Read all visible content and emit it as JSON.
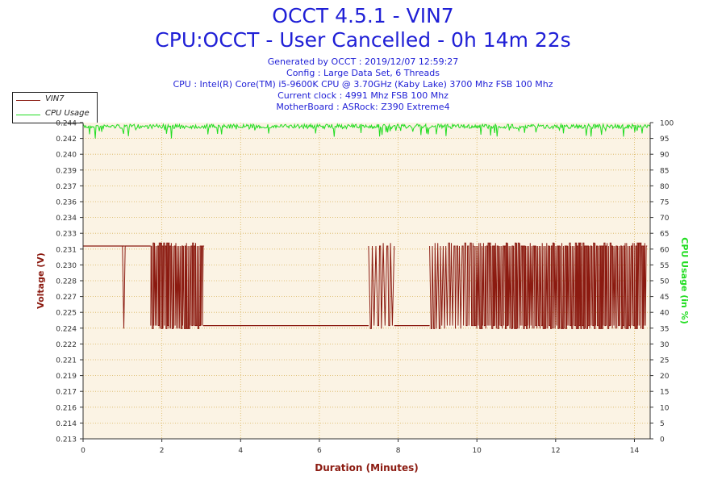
{
  "title": "OCCT 4.5.1 - VIN7",
  "subtitle": "CPU:OCCT - User Cancelled - 0h 14m 22s",
  "meta": [
    "Generated by OCCT : 2019/12/07 12:59:27",
    "Config : Large Data Set, 6 Threads",
    "CPU : Intel(R) Core(TM) i5-9600K CPU @ 3.70GHz (Kaby Lake) 3700 Mhz FSB 100 Mhz",
    "Current clock : 4991 Mhz FSB 100 Mhz",
    "MotherBoard : ASRock: Z390 Extreme4"
  ],
  "colors": {
    "title": "#1f1fd6",
    "voltage": "#8b1a10",
    "cpu": "#22dd22",
    "plot_bg": "#fbf3e4",
    "grid": "#d8b35a"
  },
  "chart_data": {
    "type": "line",
    "xlabel": "Duration (Minutes)",
    "ylabel": "Voltage (V)",
    "y2label": "CPU Usage (in %)",
    "xlim": [
      0,
      14.4
    ],
    "ylim": [
      0.213,
      0.244
    ],
    "y2lim": [
      0,
      100
    ],
    "xticks": [
      0,
      2,
      4,
      6,
      8,
      10,
      12,
      14
    ],
    "yticks": [
      "0.213",
      "0.214",
      "0.216",
      "0.217",
      "0.219",
      "0.221",
      "0.222",
      "0.224",
      "0.225",
      "0.227",
      "0.228",
      "0.230",
      "0.231",
      "0.233",
      "0.234",
      "0.236",
      "0.237",
      "0.239",
      "0.240",
      "0.242",
      "0.244"
    ],
    "y2ticks": [
      0,
      5,
      10,
      15,
      20,
      25,
      30,
      35,
      40,
      45,
      50,
      55,
      60,
      65,
      70,
      75,
      80,
      85,
      90,
      95,
      100
    ],
    "grid": true,
    "legend": "top-left",
    "series": [
      {
        "name": "VIN7",
        "axis": "left",
        "low": 0.2241,
        "high": 0.2319,
        "baseline_segments": [
          {
            "x_start": 0.0,
            "x_end": 1.05,
            "value": 0.2319
          },
          {
            "x_start": 1.05,
            "x_end": 1.7,
            "value": 0.2319
          },
          {
            "x_start": 3.05,
            "x_end": 7.25,
            "value": 0.2241
          },
          {
            "x_start": 7.9,
            "x_end": 8.8,
            "value": 0.2241
          }
        ],
        "fluctuation_segments": [
          {
            "x_start": 1.0,
            "x_end": 1.07,
            "density": 2
          },
          {
            "x_start": 1.7,
            "x_end": 3.05,
            "density": 70
          },
          {
            "x_start": 7.25,
            "x_end": 7.9,
            "density": 14
          },
          {
            "x_start": 8.8,
            "x_end": 9.9,
            "density": 32
          },
          {
            "x_start": 9.9,
            "x_end": 14.3,
            "density": 230
          }
        ]
      },
      {
        "name": "CPU Usage",
        "axis": "right",
        "typical": 99.5,
        "min_dips": [
          {
            "x": 0.3,
            "value": 95
          },
          {
            "x": 2.25,
            "value": 95
          },
          {
            "x": 14.0,
            "value": 97
          }
        ]
      }
    ]
  }
}
